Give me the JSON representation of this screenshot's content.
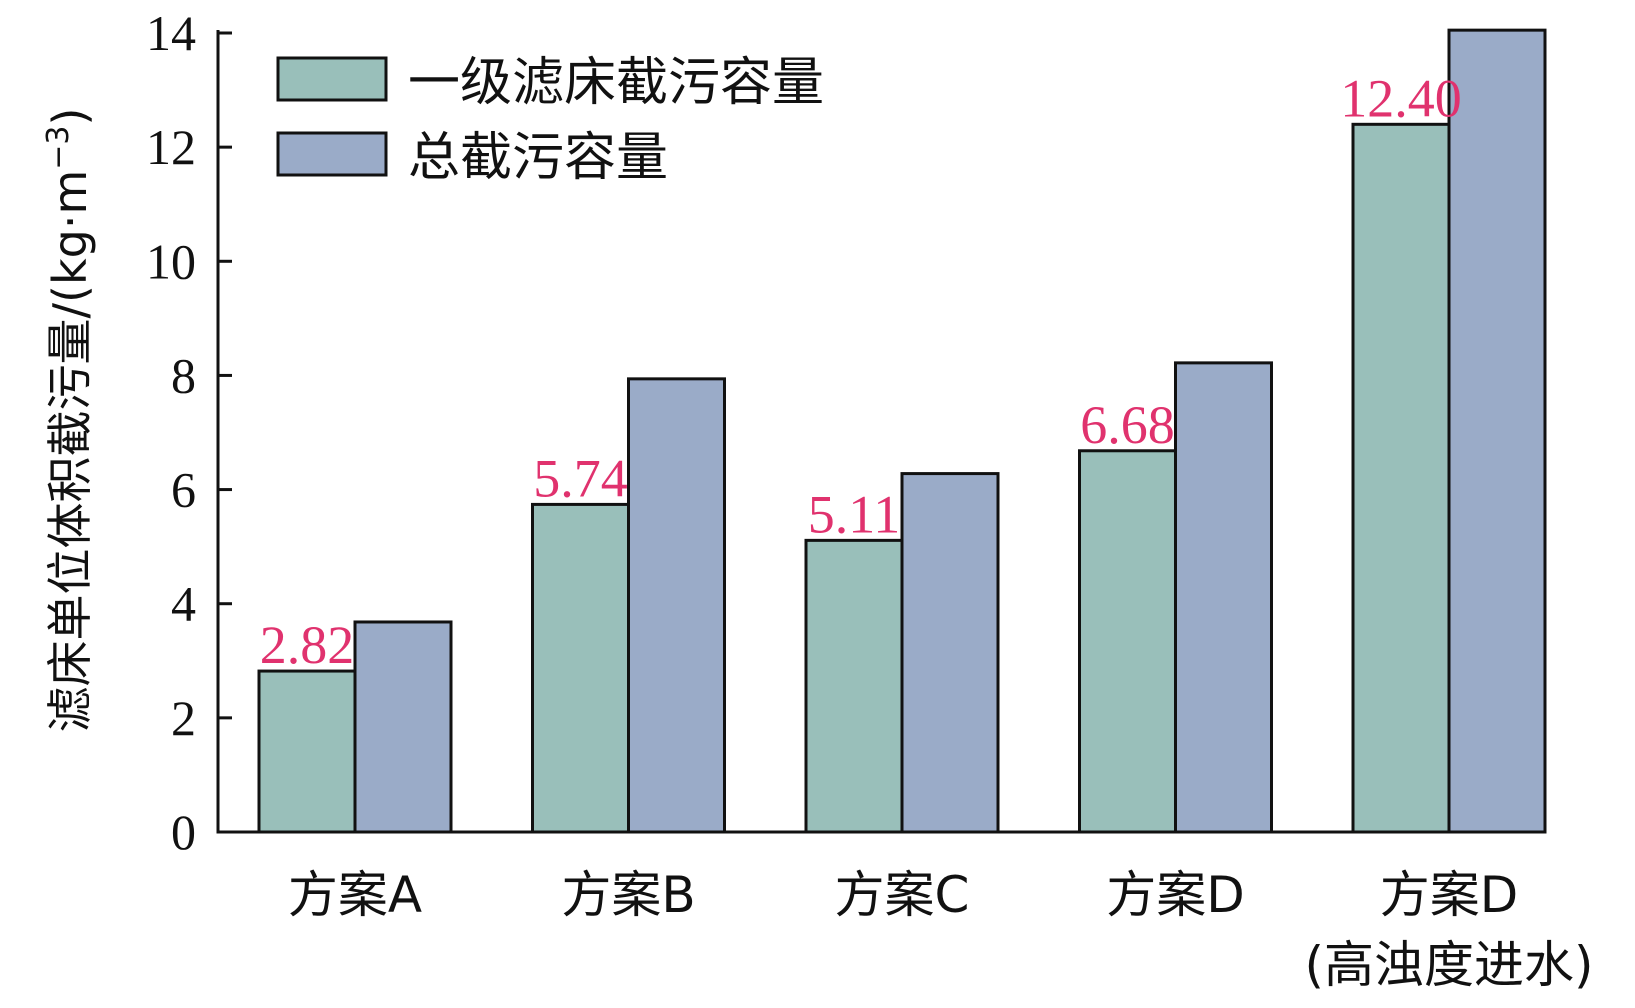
{
  "chart_data": {
    "type": "bar",
    "title": "",
    "xlabel": "",
    "ylabel": "滤床单位体积截污量/(kg·m",
    "ylabel_superscript": "−3",
    "ylabel_close": ")",
    "ylim": [
      0,
      14
    ],
    "yticks": [
      0,
      2,
      4,
      6,
      8,
      10,
      12,
      14
    ],
    "grid": false,
    "legend_position": "top-left",
    "categories": [
      {
        "line1": "方案A",
        "line2": ""
      },
      {
        "line1": "方案B",
        "line2": ""
      },
      {
        "line1": "方案C",
        "line2": ""
      },
      {
        "line1": "方案D",
        "line2": ""
      },
      {
        "line1": "方案D",
        "line2": "(高浊度进水)"
      }
    ],
    "series": [
      {
        "name": "一级滤床截污容量",
        "color": "#99bfba",
        "values": [
          2.82,
          5.74,
          5.11,
          6.68,
          12.4
        ]
      },
      {
        "name": "总截污容量",
        "color": "#9aabc8",
        "values": [
          3.68,
          7.94,
          6.28,
          8.22,
          14.05
        ]
      }
    ],
    "data_labels": {
      "series_index": 0,
      "color": "#e0326e",
      "texts": [
        "2.82",
        "5.74",
        "5.11",
        "6.68",
        "12.40"
      ]
    }
  }
}
